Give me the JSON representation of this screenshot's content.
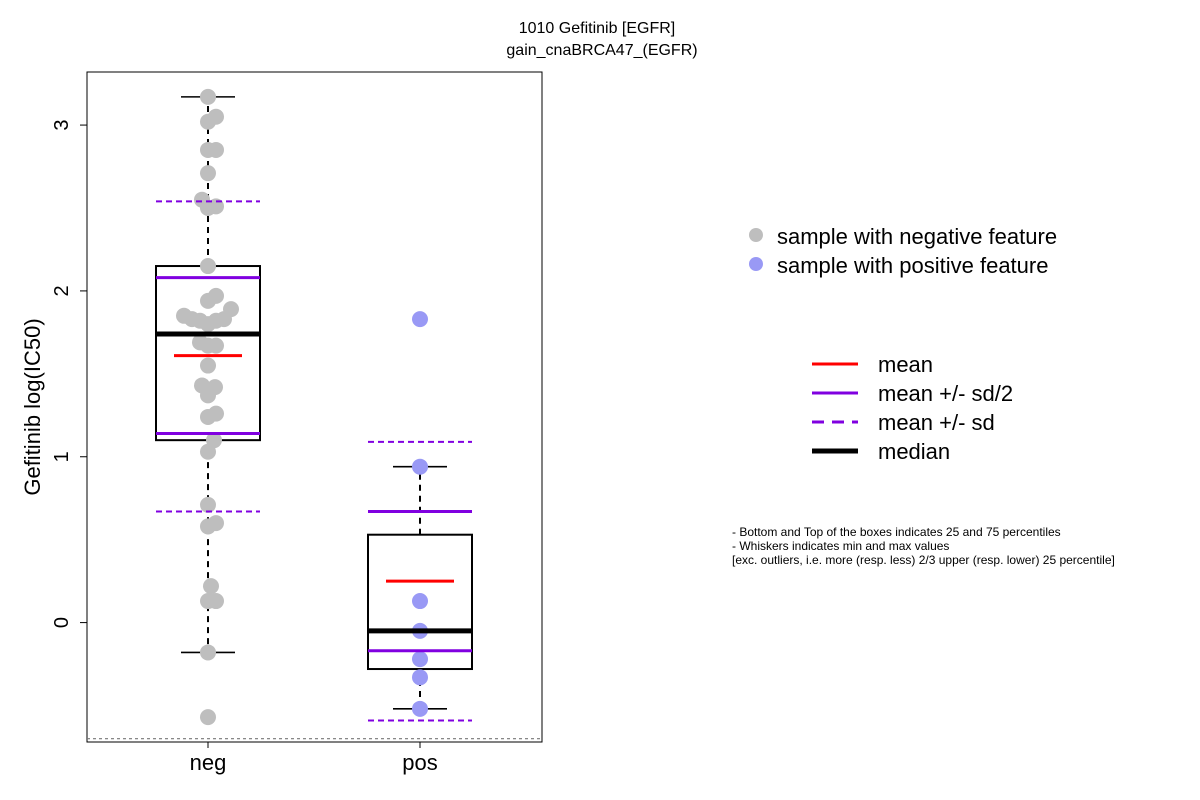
{
  "chart_data": {
    "type": "box",
    "title": "1010 Gefitinib [EGFR]",
    "subtitle": "gain_cnaBRCA47_(EGFR)",
    "xlabel": "",
    "ylabel": "Gefitinib log(IC50)",
    "ylim": [
      -0.72,
      3.32
    ],
    "yticks": [
      0,
      1,
      2,
      3
    ],
    "categories": [
      "neg",
      "pos"
    ],
    "dashed_baseline": -0.7,
    "groups": [
      {
        "name": "neg",
        "point_color": "#bebebe",
        "box": {
          "q1": 1.1,
          "median": 1.74,
          "q3": 2.15,
          "whisker_low": -0.18,
          "whisker_high": 3.17
        },
        "mean": 1.61,
        "mean_half_sd": [
          1.14,
          2.08
        ],
        "mean_sd": [
          0.67,
          2.54
        ],
        "points": [
          {
            "x": 0,
            "y": 3.17
          },
          {
            "x": 0,
            "y": 3.02
          },
          {
            "x": 0.08,
            "y": 3.05
          },
          {
            "x": 0,
            "y": 2.85
          },
          {
            "x": 0.08,
            "y": 2.85
          },
          {
            "x": 0,
            "y": 2.71
          },
          {
            "x": -0.06,
            "y": 2.55
          },
          {
            "x": 0,
            "y": 2.5
          },
          {
            "x": 0.08,
            "y": 2.51
          },
          {
            "x": 0,
            "y": 2.15
          },
          {
            "x": 0,
            "y": 1.94
          },
          {
            "x": 0.08,
            "y": 1.97
          },
          {
            "x": 0.23,
            "y": 1.89
          },
          {
            "x": -0.24,
            "y": 1.85
          },
          {
            "x": -0.16,
            "y": 1.83
          },
          {
            "x": -0.08,
            "y": 1.82
          },
          {
            "x": 0,
            "y": 1.8
          },
          {
            "x": 0.08,
            "y": 1.82
          },
          {
            "x": 0.16,
            "y": 1.83
          },
          {
            "x": -0.08,
            "y": 1.69
          },
          {
            "x": 0,
            "y": 1.67
          },
          {
            "x": 0.08,
            "y": 1.67
          },
          {
            "x": 0,
            "y": 1.55
          },
          {
            "x": -0.06,
            "y": 1.43
          },
          {
            "x": 0.07,
            "y": 1.42
          },
          {
            "x": 0,
            "y": 1.37
          },
          {
            "x": 0,
            "y": 1.24
          },
          {
            "x": 0.08,
            "y": 1.26
          },
          {
            "x": 0.06,
            "y": 1.1
          },
          {
            "x": 0,
            "y": 1.03
          },
          {
            "x": 0,
            "y": 0.71
          },
          {
            "x": 0,
            "y": 0.58
          },
          {
            "x": 0.08,
            "y": 0.6
          },
          {
            "x": 0.03,
            "y": 0.22
          },
          {
            "x": 0,
            "y": 0.13
          },
          {
            "x": 0.08,
            "y": 0.13
          },
          {
            "x": 0,
            "y": -0.18
          },
          {
            "x": 0,
            "y": -0.57
          }
        ]
      },
      {
        "name": "pos",
        "point_color": "#9999f5",
        "box": {
          "q1": -0.28,
          "median": -0.05,
          "q3": 0.53,
          "whisker_low": -0.52,
          "whisker_high": 0.94
        },
        "mean": 0.25,
        "mean_half_sd": [
          -0.17,
          0.67
        ],
        "mean_sd": [
          -0.59,
          1.09
        ],
        "points": [
          {
            "x": 0,
            "y": 1.83
          },
          {
            "x": 0,
            "y": 0.94
          },
          {
            "x": 0,
            "y": 0.13
          },
          {
            "x": 0,
            "y": -0.05
          },
          {
            "x": 0,
            "y": -0.22
          },
          {
            "x": 0,
            "y": -0.33
          },
          {
            "x": 0,
            "y": -0.52
          }
        ]
      }
    ],
    "colors": {
      "mean": "#ff0000",
      "sd": "#8000e0",
      "median": "#000000"
    },
    "legend_points": [
      {
        "label": "sample with negative feature",
        "color": "#bebebe"
      },
      {
        "label": "sample with positive feature",
        "color": "#9999f5"
      }
    ],
    "legend_lines": [
      {
        "label": "mean",
        "color": "#ff0000",
        "style": "solid",
        "weight": "normal"
      },
      {
        "label": "mean +/- sd/2",
        "color": "#8000e0",
        "style": "solid",
        "weight": "normal"
      },
      {
        "label": "mean +/- sd",
        "color": "#8000e0",
        "style": "dashed",
        "weight": "normal"
      },
      {
        "label": "median",
        "color": "#000000",
        "style": "solid",
        "weight": "bold"
      }
    ],
    "notes": [
      "- Bottom and Top of the boxes indicates 25 and 75 percentiles",
      "- Whiskers indicates min and max values",
      "[exc. outliers, i.e. more (resp. less) 2/3 upper (resp. lower) 25 percentile]"
    ]
  }
}
